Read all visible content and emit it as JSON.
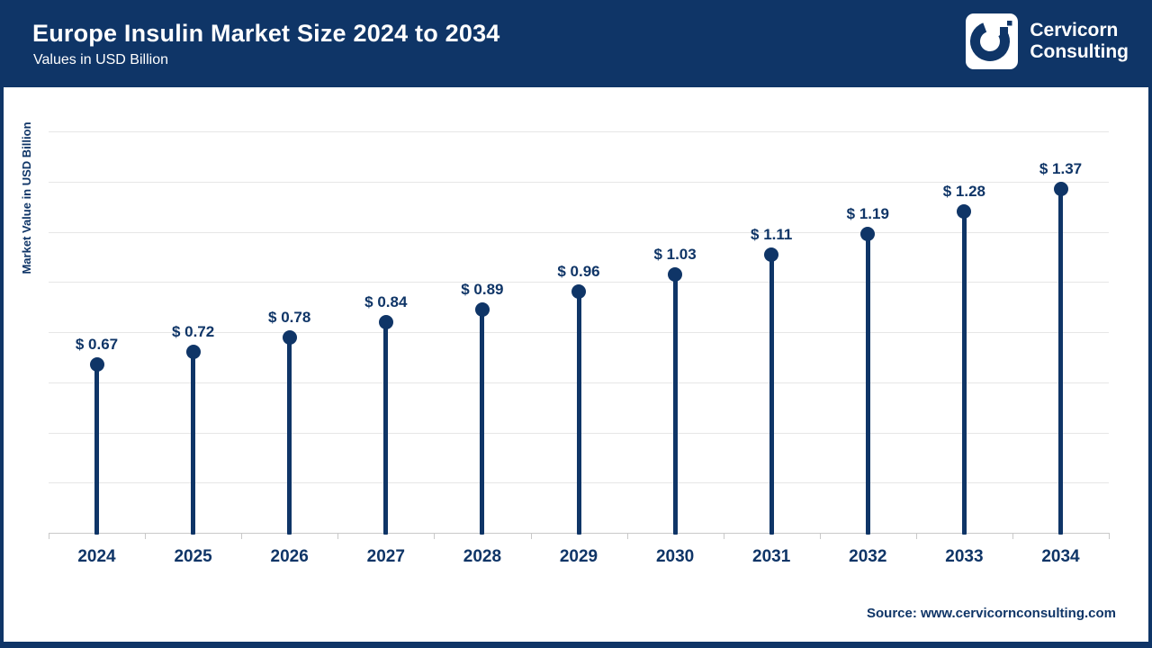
{
  "header": {
    "title": "Europe Insulin Market Size 2024 to 2034",
    "subtitle": "Values in USD Billion",
    "logo": {
      "line1": "Cervicorn",
      "line2": "Consulting"
    }
  },
  "footer": {
    "source": "Source: www.cervicornconsulting.com"
  },
  "colors": {
    "navy": "#0f3567",
    "header_bg": "#0f3567",
    "gridline": "#e6e6e6",
    "axis": "#c9c9c9",
    "data_label": "#0f3567"
  },
  "chart_data": {
    "type": "bar",
    "variant": "lollipop",
    "title": "Europe Insulin Market Size 2024 to 2034",
    "subtitle": "Values in USD Billion",
    "categories": [
      "2024",
      "2025",
      "2026",
      "2027",
      "2028",
      "2029",
      "2030",
      "2031",
      "2032",
      "2033",
      "2034"
    ],
    "values": [
      0.67,
      0.72,
      0.78,
      0.84,
      0.89,
      0.96,
      1.03,
      1.11,
      1.19,
      1.28,
      1.37
    ],
    "value_labels": [
      "$ 0.67",
      "$ 0.72",
      "$ 0.78",
      "$ 0.84",
      "$ 0.89",
      "$ 0.96",
      "$ 1.03",
      "$ 1.11",
      "$ 1.19",
      "$ 1.28",
      "$ 1.37"
    ],
    "xlabel": "",
    "ylabel": "Market Value in USD Billion",
    "ylim": [
      0,
      1.6
    ],
    "grid": true,
    "gridline_step": 0.2,
    "legend": false
  }
}
